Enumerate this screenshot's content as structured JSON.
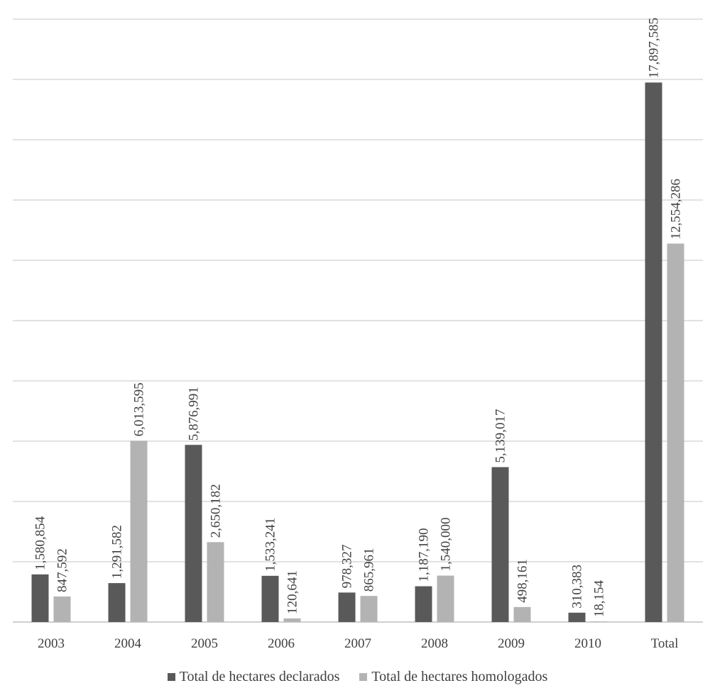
{
  "chart_data": {
    "type": "bar",
    "title": "",
    "xlabel": "",
    "ylabel": "",
    "categories": [
      "2003",
      "2004",
      "2005",
      "2006",
      "2007",
      "2008",
      "2009",
      "2010",
      "Total"
    ],
    "series": [
      {
        "name": "Total de hectares declarados",
        "color": "#595959",
        "values": [
          1580854,
          1291582,
          5876991,
          1533241,
          978327,
          1187190,
          5139017,
          310383,
          17897585
        ],
        "labels": [
          "1,580,854",
          "1,291,582",
          "5,876,991",
          "1,533,241",
          "978,327",
          "1,187,190",
          "5,139,017",
          "310,383",
          "17,897,585"
        ]
      },
      {
        "name": "Total de hectares homologados",
        "color": "#b3b3b3",
        "values": [
          847592,
          6013595,
          2650182,
          120641,
          865961,
          1540000,
          498161,
          18154,
          12554286
        ],
        "labels": [
          "847,592",
          "6,013,595",
          "2,650,182",
          "120,641",
          "865,961",
          "1,540,000",
          "498,161",
          "18,154",
          "12,554,286"
        ]
      }
    ],
    "ylim": [
      0,
      20000000
    ],
    "y_axis_labels_shown": false,
    "grid": true,
    "legend_position": "bottom"
  }
}
